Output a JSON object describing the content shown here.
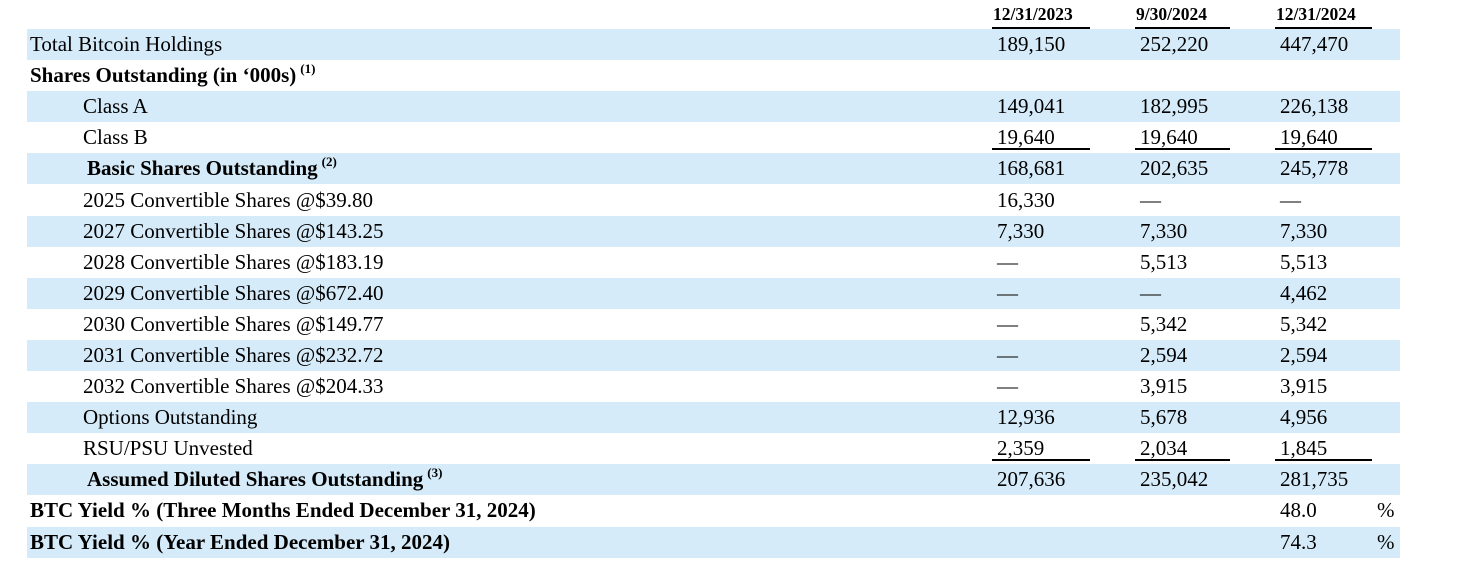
{
  "colors": {
    "row_shade": "#d6ebf9",
    "text": "#000000",
    "background": "#ffffff"
  },
  "header": {
    "columns": [
      "12/31/2023",
      "9/30/2024",
      "12/31/2024"
    ]
  },
  "rows": [
    {
      "label": "Total Bitcoin Holdings",
      "sup": "",
      "bold": false,
      "indent": 0,
      "shaded": true,
      "underline": false,
      "values": [
        "189,150",
        "252,220",
        "447,470"
      ],
      "pct": ""
    },
    {
      "label": "Shares Outstanding (in ‘000s)",
      "sup": "(1)",
      "bold": true,
      "indent": 0,
      "shaded": false,
      "underline": false,
      "values": [
        "",
        "",
        ""
      ],
      "pct": ""
    },
    {
      "label": "Class A",
      "sup": "",
      "bold": false,
      "indent": 1,
      "shaded": true,
      "underline": false,
      "values": [
        "149,041",
        "182,995",
        "226,138"
      ],
      "pct": ""
    },
    {
      "label": "Class B",
      "sup": "",
      "bold": false,
      "indent": 1,
      "shaded": false,
      "underline": true,
      "values": [
        "19,640",
        "19,640",
        "19,640"
      ],
      "pct": ""
    },
    {
      "label": "Basic Shares Outstanding",
      "sup": "(2)",
      "bold": true,
      "indent": 2,
      "shaded": true,
      "underline": false,
      "values": [
        "168,681",
        "202,635",
        "245,778"
      ],
      "pct": ""
    },
    {
      "label": "2025 Convertible Shares @$39.80",
      "sup": "",
      "bold": false,
      "indent": 1,
      "shaded": false,
      "underline": false,
      "values": [
        "16,330",
        "—",
        "—"
      ],
      "pct": ""
    },
    {
      "label": "2027 Convertible Shares @$143.25",
      "sup": "",
      "bold": false,
      "indent": 1,
      "shaded": true,
      "underline": false,
      "values": [
        "7,330",
        "7,330",
        "7,330"
      ],
      "pct": ""
    },
    {
      "label": "2028 Convertible Shares @$183.19",
      "sup": "",
      "bold": false,
      "indent": 1,
      "shaded": false,
      "underline": false,
      "values": [
        "—",
        "5,513",
        "5,513"
      ],
      "pct": ""
    },
    {
      "label": "2029 Convertible Shares @$672.40",
      "sup": "",
      "bold": false,
      "indent": 1,
      "shaded": true,
      "underline": false,
      "values": [
        "—",
        "—",
        "4,462"
      ],
      "pct": ""
    },
    {
      "label": "2030 Convertible Shares @$149.77",
      "sup": "",
      "bold": false,
      "indent": 1,
      "shaded": false,
      "underline": false,
      "values": [
        "—",
        "5,342",
        "5,342"
      ],
      "pct": ""
    },
    {
      "label": "2031 Convertible Shares @$232.72",
      "sup": "",
      "bold": false,
      "indent": 1,
      "shaded": true,
      "underline": false,
      "values": [
        "—",
        "2,594",
        "2,594"
      ],
      "pct": ""
    },
    {
      "label": "2032 Convertible Shares @$204.33",
      "sup": "",
      "bold": false,
      "indent": 1,
      "shaded": false,
      "underline": false,
      "values": [
        "—",
        "3,915",
        "3,915"
      ],
      "pct": ""
    },
    {
      "label": "Options Outstanding",
      "sup": "",
      "bold": false,
      "indent": 1,
      "shaded": true,
      "underline": false,
      "values": [
        "12,936",
        "5,678",
        "4,956"
      ],
      "pct": ""
    },
    {
      "label": "RSU/PSU Unvested",
      "sup": "",
      "bold": false,
      "indent": 1,
      "shaded": false,
      "underline": true,
      "values": [
        "2,359",
        "2,034",
        "1,845"
      ],
      "pct": ""
    },
    {
      "label": "Assumed Diluted Shares Outstanding",
      "sup": "(3)",
      "bold": true,
      "indent": 2,
      "shaded": true,
      "underline": false,
      "values": [
        "207,636",
        "235,042",
        "281,735"
      ],
      "pct": ""
    },
    {
      "label": "BTC Yield % (Three Months Ended December 31, 2024)",
      "sup": "",
      "bold": true,
      "indent": 0,
      "shaded": false,
      "underline": false,
      "values": [
        "",
        "",
        "48.0"
      ],
      "pct": "%"
    },
    {
      "label": "BTC Yield % (Year Ended December 31, 2024)",
      "sup": "",
      "bold": true,
      "indent": 0,
      "shaded": true,
      "underline": false,
      "values": [
        "",
        "",
        "74.3"
      ],
      "pct": "%"
    }
  ]
}
